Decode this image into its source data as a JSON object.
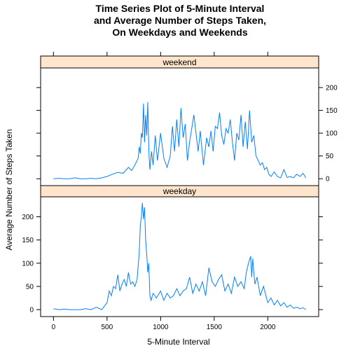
{
  "chart_data": {
    "type": "line",
    "title": "Time Series Plot of 5-Minute Interval\nand Average Number of Steps Taken,\nOn Weekdays and Weekends",
    "xlabel": "5-Minute Interval",
    "ylabel": "Average Number of Steps Taken",
    "xlim": [
      -120,
      2475
    ],
    "ylim": [
      -15,
      243
    ],
    "x_ticks": [
      0,
      500,
      1000,
      1500,
      2000
    ],
    "y_ticks": [
      0,
      50,
      100,
      150,
      200
    ],
    "line_color": "#0080ff",
    "strip_color": "#ffe5cc",
    "panels": [
      {
        "name": "weekend",
        "y_axis_side": "right",
        "x": [
          0,
          50,
          100,
          150,
          200,
          250,
          300,
          350,
          400,
          450,
          500,
          550,
          600,
          650,
          700,
          730,
          760,
          790,
          800,
          810,
          820,
          830,
          840,
          850,
          860,
          870,
          880,
          890,
          900,
          915,
          930,
          950,
          970,
          1000,
          1030,
          1060,
          1090,
          1110,
          1130,
          1150,
          1170,
          1190,
          1210,
          1230,
          1250,
          1270,
          1290,
          1310,
          1330,
          1350,
          1370,
          1400,
          1430,
          1450,
          1470,
          1490,
          1510,
          1530,
          1550,
          1570,
          1590,
          1610,
          1630,
          1650,
          1670,
          1690,
          1710,
          1730,
          1750,
          1770,
          1790,
          1810,
          1830,
          1850,
          1870,
          1890,
          1910,
          1930,
          1950,
          1970,
          1990,
          2010,
          2030,
          2060,
          2090,
          2120,
          2150,
          2180,
          2210,
          2240,
          2270,
          2300,
          2330,
          2355
        ],
        "y": [
          0,
          1,
          0,
          0,
          2,
          0,
          0,
          1,
          0,
          2,
          5,
          10,
          14,
          12,
          25,
          18,
          30,
          45,
          70,
          55,
          100,
          90,
          165,
          80,
          140,
          95,
          168,
          60,
          20,
          60,
          30,
          95,
          40,
          100,
          45,
          25,
          50,
          115,
          60,
          130,
          70,
          155,
          90,
          120,
          40,
          80,
          110,
          140,
          100,
          60,
          105,
          30,
          90,
          70,
          105,
          60,
          115,
          110,
          145,
          95,
          75,
          110,
          100,
          130,
          80,
          40,
          100,
          85,
          140,
          70,
          125,
          65,
          150,
          80,
          95,
          50,
          40,
          30,
          35,
          20,
          25,
          10,
          5,
          15,
          5,
          2,
          20,
          3,
          5,
          2,
          10,
          5,
          12,
          2
        ]
      },
      {
        "name": "weekday",
        "y_axis_side": "left",
        "x": [
          0,
          50,
          100,
          150,
          200,
          250,
          300,
          350,
          400,
          450,
          500,
          520,
          540,
          560,
          580,
          600,
          620,
          640,
          660,
          680,
          700,
          720,
          740,
          760,
          780,
          800,
          810,
          820,
          830,
          840,
          850,
          860,
          870,
          880,
          890,
          900,
          910,
          930,
          960,
          1000,
          1030,
          1060,
          1090,
          1120,
          1150,
          1180,
          1210,
          1240,
          1270,
          1300,
          1330,
          1360,
          1390,
          1420,
          1450,
          1480,
          1510,
          1540,
          1570,
          1600,
          1630,
          1660,
          1690,
          1720,
          1750,
          1780,
          1800,
          1820,
          1840,
          1850,
          1860,
          1870,
          1880,
          1900,
          1930,
          1960,
          2000,
          2030,
          2060,
          2090,
          2120,
          2150,
          2180,
          2210,
          2240,
          2270,
          2300,
          2330,
          2355
        ],
        "y": [
          2,
          0,
          1,
          0,
          0,
          0,
          2,
          0,
          5,
          0,
          15,
          40,
          30,
          50,
          45,
          75,
          40,
          55,
          65,
          50,
          80,
          55,
          60,
          50,
          65,
          120,
          180,
          200,
          230,
          195,
          220,
          150,
          120,
          80,
          100,
          30,
          20,
          35,
          25,
          40,
          20,
          35,
          25,
          30,
          45,
          30,
          40,
          45,
          70,
          35,
          55,
          40,
          60,
          30,
          90,
          60,
          50,
          65,
          75,
          40,
          55,
          35,
          70,
          50,
          60,
          45,
          80,
          100,
          115,
          70,
          110,
          80,
          55,
          70,
          30,
          50,
          15,
          25,
          10,
          20,
          8,
          15,
          5,
          10,
          3,
          5,
          2,
          4,
          0
        ]
      }
    ]
  }
}
